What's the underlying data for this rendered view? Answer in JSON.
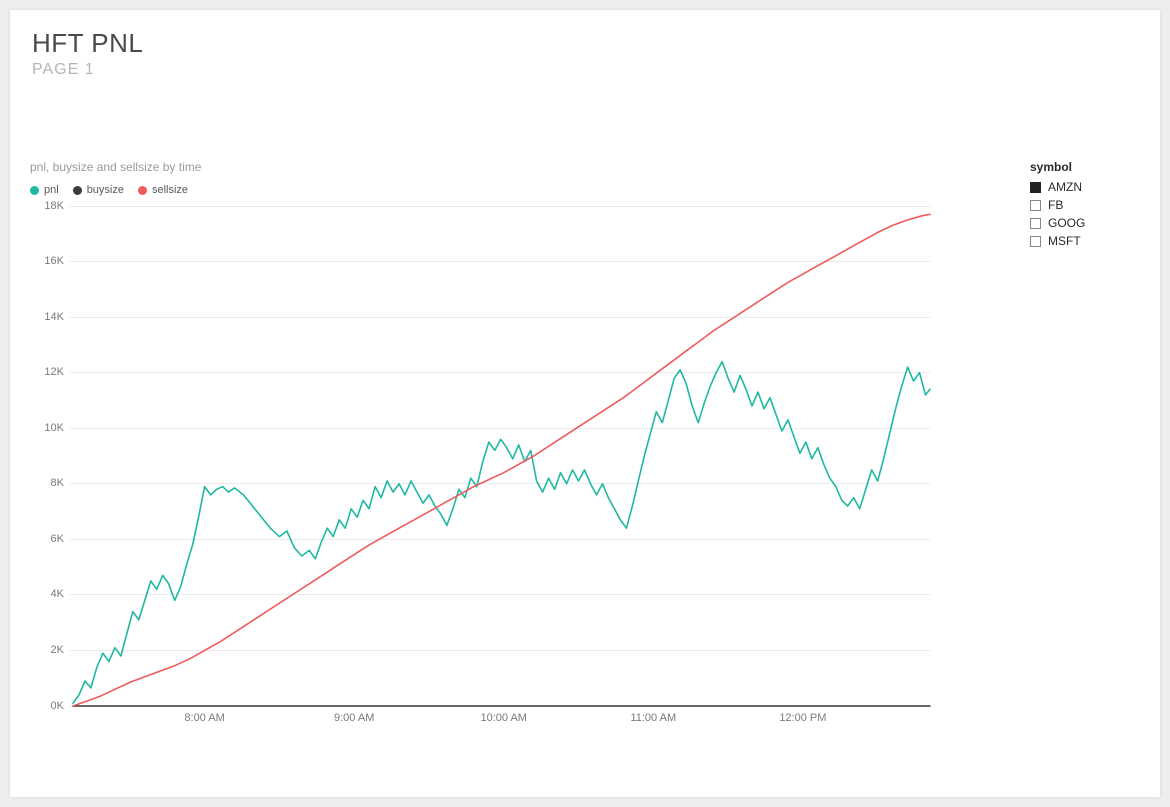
{
  "header": {
    "title": "HFT PNL",
    "subtitle": "PAGE 1"
  },
  "chart": {
    "subtitle": "pnl, buysize and sellsize by time",
    "type": "line",
    "background_color": "#ffffff",
    "grid_color": "#eaeaea",
    "axis_label_color": "#7a7a7a",
    "axis_font_size": 11,
    "subtitle_font_size": 12,
    "subtitle_color": "#9a9a9a",
    "line_width": 1.6,
    "y": {
      "min": 0,
      "max": 18000,
      "ticks": [
        0,
        2000,
        4000,
        6000,
        8000,
        10000,
        12000,
        14000,
        16000,
        18000
      ],
      "tick_labels": [
        "0K",
        "2K",
        "4K",
        "6K",
        "8K",
        "10K",
        "12K",
        "14K",
        "16K",
        "18K"
      ]
    },
    "x": {
      "min": 7.1,
      "max": 12.85,
      "ticks": [
        8,
        9,
        10,
        11,
        12
      ],
      "tick_labels": [
        "8:00 AM",
        "9:00 AM",
        "10:00 AM",
        "11:00 AM",
        "12:00 PM"
      ]
    },
    "legend": [
      {
        "name": "pnl",
        "color": "#1fb8a3"
      },
      {
        "name": "buysize",
        "color": "#3a3a3a"
      },
      {
        "name": "sellsize",
        "color": "#ef5a5a"
      }
    ],
    "series": {
      "pnl": {
        "color": "#1fb8a3",
        "xy": [
          [
            7.12,
            100
          ],
          [
            7.16,
            400
          ],
          [
            7.2,
            900
          ],
          [
            7.24,
            650
          ],
          [
            7.28,
            1400
          ],
          [
            7.32,
            1900
          ],
          [
            7.36,
            1600
          ],
          [
            7.4,
            2100
          ],
          [
            7.44,
            1800
          ],
          [
            7.48,
            2600
          ],
          [
            7.52,
            3400
          ],
          [
            7.56,
            3100
          ],
          [
            7.6,
            3800
          ],
          [
            7.64,
            4500
          ],
          [
            7.68,
            4200
          ],
          [
            7.72,
            4700
          ],
          [
            7.76,
            4400
          ],
          [
            7.8,
            3800
          ],
          [
            7.84,
            4300
          ],
          [
            7.88,
            5100
          ],
          [
            7.92,
            5800
          ],
          [
            7.96,
            6800
          ],
          [
            8.0,
            7900
          ],
          [
            8.04,
            7600
          ],
          [
            8.08,
            7800
          ],
          [
            8.12,
            7900
          ],
          [
            8.16,
            7700
          ],
          [
            8.2,
            7850
          ],
          [
            8.26,
            7600
          ],
          [
            8.32,
            7200
          ],
          [
            8.38,
            6800
          ],
          [
            8.44,
            6400
          ],
          [
            8.5,
            6100
          ],
          [
            8.55,
            6300
          ],
          [
            8.6,
            5700
          ],
          [
            8.65,
            5400
          ],
          [
            8.7,
            5600
          ],
          [
            8.74,
            5300
          ],
          [
            8.78,
            5900
          ],
          [
            8.82,
            6400
          ],
          [
            8.86,
            6100
          ],
          [
            8.9,
            6700
          ],
          [
            8.94,
            6400
          ],
          [
            8.98,
            7100
          ],
          [
            9.02,
            6800
          ],
          [
            9.06,
            7400
          ],
          [
            9.1,
            7100
          ],
          [
            9.14,
            7900
          ],
          [
            9.18,
            7500
          ],
          [
            9.22,
            8100
          ],
          [
            9.26,
            7700
          ],
          [
            9.3,
            8000
          ],
          [
            9.34,
            7600
          ],
          [
            9.38,
            8100
          ],
          [
            9.42,
            7700
          ],
          [
            9.46,
            7300
          ],
          [
            9.5,
            7600
          ],
          [
            9.54,
            7200
          ],
          [
            9.58,
            6900
          ],
          [
            9.62,
            6500
          ],
          [
            9.66,
            7100
          ],
          [
            9.7,
            7800
          ],
          [
            9.74,
            7500
          ],
          [
            9.78,
            8200
          ],
          [
            9.82,
            7900
          ],
          [
            9.86,
            8800
          ],
          [
            9.9,
            9500
          ],
          [
            9.94,
            9200
          ],
          [
            9.98,
            9600
          ],
          [
            10.02,
            9300
          ],
          [
            10.06,
            8900
          ],
          [
            10.1,
            9400
          ],
          [
            10.14,
            8800
          ],
          [
            10.18,
            9200
          ],
          [
            10.22,
            8100
          ],
          [
            10.26,
            7700
          ],
          [
            10.3,
            8200
          ],
          [
            10.34,
            7800
          ],
          [
            10.38,
            8400
          ],
          [
            10.42,
            8000
          ],
          [
            10.46,
            8500
          ],
          [
            10.5,
            8100
          ],
          [
            10.54,
            8500
          ],
          [
            10.58,
            8000
          ],
          [
            10.62,
            7600
          ],
          [
            10.66,
            8000
          ],
          [
            10.7,
            7500
          ],
          [
            10.74,
            7100
          ],
          [
            10.78,
            6700
          ],
          [
            10.82,
            6400
          ],
          [
            10.86,
            7200
          ],
          [
            10.9,
            8100
          ],
          [
            10.94,
            9000
          ],
          [
            10.98,
            9800
          ],
          [
            11.02,
            10600
          ],
          [
            11.06,
            10200
          ],
          [
            11.1,
            11000
          ],
          [
            11.14,
            11800
          ],
          [
            11.18,
            12100
          ],
          [
            11.22,
            11600
          ],
          [
            11.26,
            10800
          ],
          [
            11.3,
            10200
          ],
          [
            11.34,
            10900
          ],
          [
            11.38,
            11500
          ],
          [
            11.42,
            12000
          ],
          [
            11.46,
            12400
          ],
          [
            11.5,
            11800
          ],
          [
            11.54,
            11300
          ],
          [
            11.58,
            11900
          ],
          [
            11.62,
            11400
          ],
          [
            11.66,
            10800
          ],
          [
            11.7,
            11300
          ],
          [
            11.74,
            10700
          ],
          [
            11.78,
            11100
          ],
          [
            11.82,
            10500
          ],
          [
            11.86,
            9900
          ],
          [
            11.9,
            10300
          ],
          [
            11.94,
            9700
          ],
          [
            11.98,
            9100
          ],
          [
            12.02,
            9500
          ],
          [
            12.06,
            8900
          ],
          [
            12.1,
            9300
          ],
          [
            12.14,
            8700
          ],
          [
            12.18,
            8200
          ],
          [
            12.22,
            7900
          ],
          [
            12.26,
            7400
          ],
          [
            12.3,
            7200
          ],
          [
            12.34,
            7500
          ],
          [
            12.38,
            7100
          ],
          [
            12.42,
            7800
          ],
          [
            12.46,
            8500
          ],
          [
            12.5,
            8100
          ],
          [
            12.54,
            8900
          ],
          [
            12.58,
            9800
          ],
          [
            12.62,
            10700
          ],
          [
            12.66,
            11500
          ],
          [
            12.7,
            12200
          ],
          [
            12.74,
            11700
          ],
          [
            12.78,
            12000
          ],
          [
            12.82,
            11200
          ],
          [
            12.85,
            11400
          ]
        ]
      },
      "sellsize": {
        "color": "#ef5a5a",
        "xy": [
          [
            7.12,
            0
          ],
          [
            7.2,
            150
          ],
          [
            7.3,
            350
          ],
          [
            7.4,
            600
          ],
          [
            7.5,
            850
          ],
          [
            7.6,
            1050
          ],
          [
            7.7,
            1250
          ],
          [
            7.8,
            1450
          ],
          [
            7.9,
            1700
          ],
          [
            8.0,
            2000
          ],
          [
            8.1,
            2300
          ],
          [
            8.2,
            2650
          ],
          [
            8.3,
            3000
          ],
          [
            8.4,
            3350
          ],
          [
            8.5,
            3700
          ],
          [
            8.6,
            4050
          ],
          [
            8.7,
            4400
          ],
          [
            8.8,
            4750
          ],
          [
            8.9,
            5100
          ],
          [
            9.0,
            5450
          ],
          [
            9.1,
            5800
          ],
          [
            9.2,
            6100
          ],
          [
            9.3,
            6400
          ],
          [
            9.4,
            6700
          ],
          [
            9.5,
            7000
          ],
          [
            9.6,
            7300
          ],
          [
            9.7,
            7600
          ],
          [
            9.8,
            7900
          ],
          [
            9.9,
            8150
          ],
          [
            10.0,
            8400
          ],
          [
            10.1,
            8700
          ],
          [
            10.2,
            9000
          ],
          [
            10.3,
            9350
          ],
          [
            10.4,
            9700
          ],
          [
            10.5,
            10050
          ],
          [
            10.6,
            10400
          ],
          [
            10.7,
            10750
          ],
          [
            10.8,
            11100
          ],
          [
            10.9,
            11500
          ],
          [
            11.0,
            11900
          ],
          [
            11.1,
            12300
          ],
          [
            11.2,
            12700
          ],
          [
            11.3,
            13100
          ],
          [
            11.4,
            13500
          ],
          [
            11.5,
            13850
          ],
          [
            11.6,
            14200
          ],
          [
            11.7,
            14550
          ],
          [
            11.8,
            14900
          ],
          [
            11.9,
            15250
          ],
          [
            12.0,
            15550
          ],
          [
            12.1,
            15850
          ],
          [
            12.2,
            16150
          ],
          [
            12.3,
            16450
          ],
          [
            12.4,
            16750
          ],
          [
            12.5,
            17050
          ],
          [
            12.6,
            17300
          ],
          [
            12.7,
            17500
          ],
          [
            12.8,
            17650
          ],
          [
            12.85,
            17700
          ]
        ]
      },
      "buysize": {
        "color": "#3a3a3a",
        "xy": [
          [
            7.12,
            0
          ],
          [
            12.85,
            0
          ]
        ]
      }
    }
  },
  "filter": {
    "title": "symbol",
    "items": [
      {
        "label": "AMZN",
        "checked": true
      },
      {
        "label": "FB",
        "checked": false
      },
      {
        "label": "GOOG",
        "checked": false
      },
      {
        "label": "MSFT",
        "checked": false
      }
    ]
  }
}
